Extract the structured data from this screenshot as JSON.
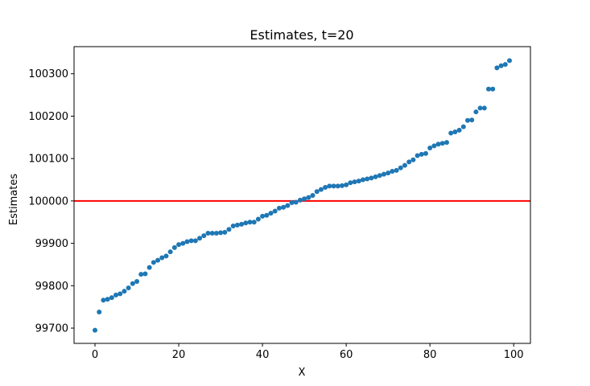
{
  "chart_data": {
    "type": "scatter",
    "title": "Estimates, t=20",
    "xlabel": "X",
    "ylabel": "Estimates",
    "xlim": [
      -5,
      104
    ],
    "ylim": [
      99664,
      100364
    ],
    "xticks": [
      0,
      20,
      40,
      60,
      80,
      100
    ],
    "yticks": [
      99700,
      99800,
      99900,
      100000,
      100100,
      100200,
      100300
    ],
    "grid": false,
    "legend": "none",
    "point_color": "#1f77b4",
    "reference_line": {
      "y": 100000,
      "color": "#ff0000"
    },
    "x": [
      0,
      1,
      2,
      3,
      4,
      5,
      6,
      7,
      8,
      9,
      10,
      11,
      12,
      13,
      14,
      15,
      16,
      17,
      18,
      19,
      20,
      21,
      22,
      23,
      24,
      25,
      26,
      27,
      28,
      29,
      30,
      31,
      32,
      33,
      34,
      35,
      36,
      37,
      38,
      39,
      40,
      41,
      42,
      43,
      44,
      45,
      46,
      47,
      48,
      49,
      50,
      51,
      52,
      53,
      54,
      55,
      56,
      57,
      58,
      59,
      60,
      61,
      62,
      63,
      64,
      65,
      66,
      67,
      68,
      69,
      70,
      71,
      72,
      73,
      74,
      75,
      76,
      77,
      78,
      79,
      80,
      81,
      82,
      83,
      84,
      85,
      86,
      87,
      88,
      89,
      90,
      91,
      92,
      93,
      94,
      95,
      96,
      97,
      98,
      99
    ],
    "y": [
      99695,
      99738,
      99766,
      99768,
      99772,
      99778,
      99781,
      99787,
      99795,
      99805,
      99810,
      99827,
      99828,
      99843,
      99855,
      99860,
      99866,
      99870,
      99880,
      99890,
      99897,
      99900,
      99904,
      99906,
      99906,
      99912,
      99918,
      99924,
      99924,
      99924,
      99925,
      99926,
      99933,
      99941,
      99943,
      99945,
      99948,
      99950,
      99950,
      99957,
      99964,
      99966,
      99971,
      99976,
      99983,
      99985,
      99989,
      99996,
      99997,
      100002,
      100005,
      100008,
      100013,
      100022,
      100027,
      100032,
      100035,
      100035,
      100035,
      100036,
      100038,
      100043,
      100045,
      100047,
      100050,
      100052,
      100054,
      100057,
      100060,
      100063,
      100066,
      100070,
      100072,
      100078,
      100084,
      100092,
      100097,
      100107,
      100110,
      100112,
      100125,
      100130,
      100134,
      100136,
      100138,
      100160,
      100163,
      100167,
      100175,
      100190,
      100191,
      100210,
      100219,
      100219,
      100264,
      100264,
      100314,
      100319,
      100322,
      100331
    ]
  }
}
